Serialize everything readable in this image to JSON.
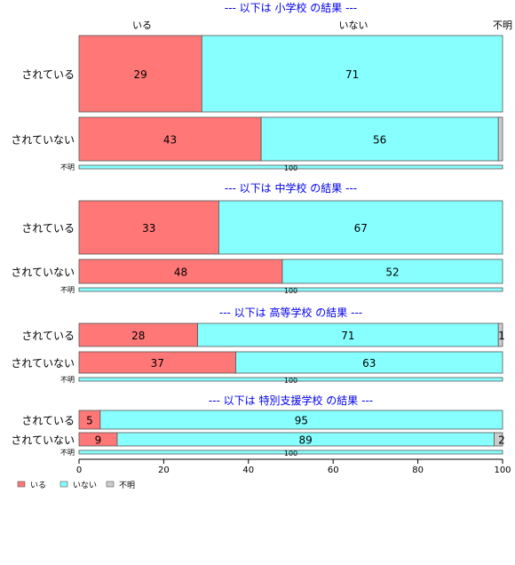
{
  "colors": {
    "iru": "#ff7777",
    "inai": "#88ffff",
    "fumei": "#cccccc",
    "title": "#0000ee"
  },
  "chart_data": {
    "type": "bar",
    "orientation": "horizontal",
    "stacked": true,
    "xlim": [
      0,
      100
    ],
    "x_ticks": [
      "0",
      "20",
      "40",
      "60",
      "80",
      "100"
    ],
    "grid": false,
    "legend_position": "bottom-left",
    "series": [
      {
        "name": "いる",
        "color": "#ff7777"
      },
      {
        "name": "いない",
        "color": "#88ffff"
      },
      {
        "name": "不明",
        "color": "#cccccc"
      }
    ],
    "top_labels": [
      "いる",
      "いない",
      "不明"
    ],
    "panels": [
      {
        "title": "--- 以下は 小学校 の結果 ---",
        "rows": [
          {
            "label": "されている",
            "values": [
              29,
              71,
              0
            ],
            "labels": [
              "29",
              "71",
              ""
            ]
          },
          {
            "label": "されていない",
            "values": [
              43,
              56,
              1
            ],
            "labels": [
              "43",
              "56",
              ""
            ]
          },
          {
            "label": "不明",
            "values": [
              0,
              100,
              0
            ],
            "labels": [
              "",
              "100",
              ""
            ]
          }
        ]
      },
      {
        "title": "--- 以下は 中学校 の結果 ---",
        "rows": [
          {
            "label": "されている",
            "values": [
              33,
              67,
              0
            ],
            "labels": [
              "33",
              "67",
              ""
            ]
          },
          {
            "label": "されていない",
            "values": [
              48,
              52,
              0
            ],
            "labels": [
              "48",
              "52",
              ""
            ]
          },
          {
            "label": "不明",
            "values": [
              0,
              100,
              0
            ],
            "labels": [
              "",
              "100",
              ""
            ]
          }
        ]
      },
      {
        "title": "--- 以下は 高等学校 の結果 ---",
        "rows": [
          {
            "label": "されている",
            "values": [
              28,
              71,
              1
            ],
            "labels": [
              "28",
              "71",
              "1"
            ]
          },
          {
            "label": "されていない",
            "values": [
              37,
              63,
              0
            ],
            "labels": [
              "37",
              "63",
              ""
            ]
          },
          {
            "label": "不明",
            "values": [
              0,
              100,
              0
            ],
            "labels": [
              "",
              "100",
              ""
            ]
          }
        ]
      },
      {
        "title": "--- 以下は 特別支援学校 の結果 ---",
        "rows": [
          {
            "label": "されている",
            "values": [
              5,
              95,
              0
            ],
            "labels": [
              "5",
              "95",
              ""
            ]
          },
          {
            "label": "されていない",
            "values": [
              9,
              89,
              2
            ],
            "labels": [
              "9",
              "89",
              "2"
            ]
          },
          {
            "label": "不明",
            "values": [
              0,
              100,
              0
            ],
            "labels": [
              "",
              "100",
              ""
            ]
          }
        ]
      }
    ]
  }
}
